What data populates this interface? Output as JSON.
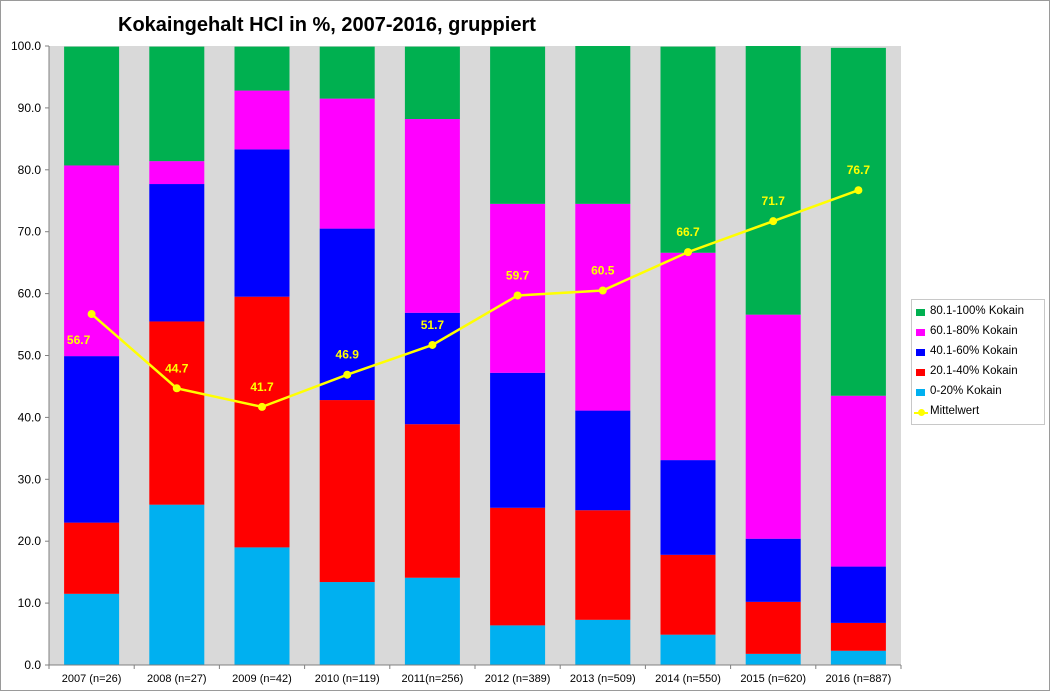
{
  "chart_data": {
    "type": "bar",
    "stacked": true,
    "title": "Kokaingehalt HCl in %, 2007-2016, gruppiert",
    "xlabel": "",
    "ylabel": "",
    "ylim": [
      0,
      100
    ],
    "yticks": [
      "0.0",
      "10.0",
      "20.0",
      "30.0",
      "40.0",
      "50.0",
      "60.0",
      "70.0",
      "80.0",
      "90.0",
      "100.0"
    ],
    "grid": false,
    "legend_position": "right",
    "categories": [
      "2007 (n=26)",
      "2008 (n=27)",
      "2009 (n=42)",
      "2010 (n=119)",
      "2011(n=256)",
      "2012 (n=389)",
      "2013 (n=509)",
      "2014 (n=550)",
      "2015 (n=620)",
      "2016 (n=887)"
    ],
    "series": [
      {
        "name": "0-20% Kokain",
        "color": "#00b0f0",
        "values": [
          11.5,
          25.9,
          19.0,
          13.4,
          14.1,
          6.4,
          7.3,
          4.9,
          1.8,
          2.3
        ]
      },
      {
        "name": "20.1-40% Kokain",
        "color": "#ff0000",
        "values": [
          11.5,
          29.6,
          40.5,
          29.4,
          24.8,
          19.0,
          17.7,
          12.9,
          8.4,
          4.5
        ]
      },
      {
        "name": "40.1-60% Kokain",
        "color": "#0000ff",
        "values": [
          26.9,
          22.2,
          23.8,
          27.7,
          18.0,
          21.8,
          16.1,
          15.3,
          10.2,
          9.1
        ]
      },
      {
        "name": "60.1-80% Kokain",
        "color": "#ff00ff",
        "values": [
          30.8,
          3.7,
          9.5,
          21.0,
          31.3,
          27.3,
          33.4,
          33.5,
          36.2,
          27.6
        ]
      },
      {
        "name": "80.1-100% Kokain",
        "color": "#00b050",
        "values": [
          19.2,
          18.5,
          7.1,
          8.4,
          11.7,
          25.4,
          25.5,
          33.3,
          43.4,
          56.2
        ]
      }
    ],
    "line_series": {
      "name": "Mittelwert",
      "color": "#ffff00",
      "values": [
        56.7,
        44.7,
        41.7,
        46.9,
        51.7,
        59.7,
        60.5,
        66.7,
        71.7,
        76.7
      ]
    },
    "line_labels": [
      "56.7",
      "44.7",
      "41.7",
      "46.9",
      "51.7",
      "59.7",
      "60.5",
      "66.7",
      "71.7",
      "76.7"
    ],
    "colors": {
      "plot_background": "#d9d9d9",
      "label": "#ffff00"
    }
  }
}
